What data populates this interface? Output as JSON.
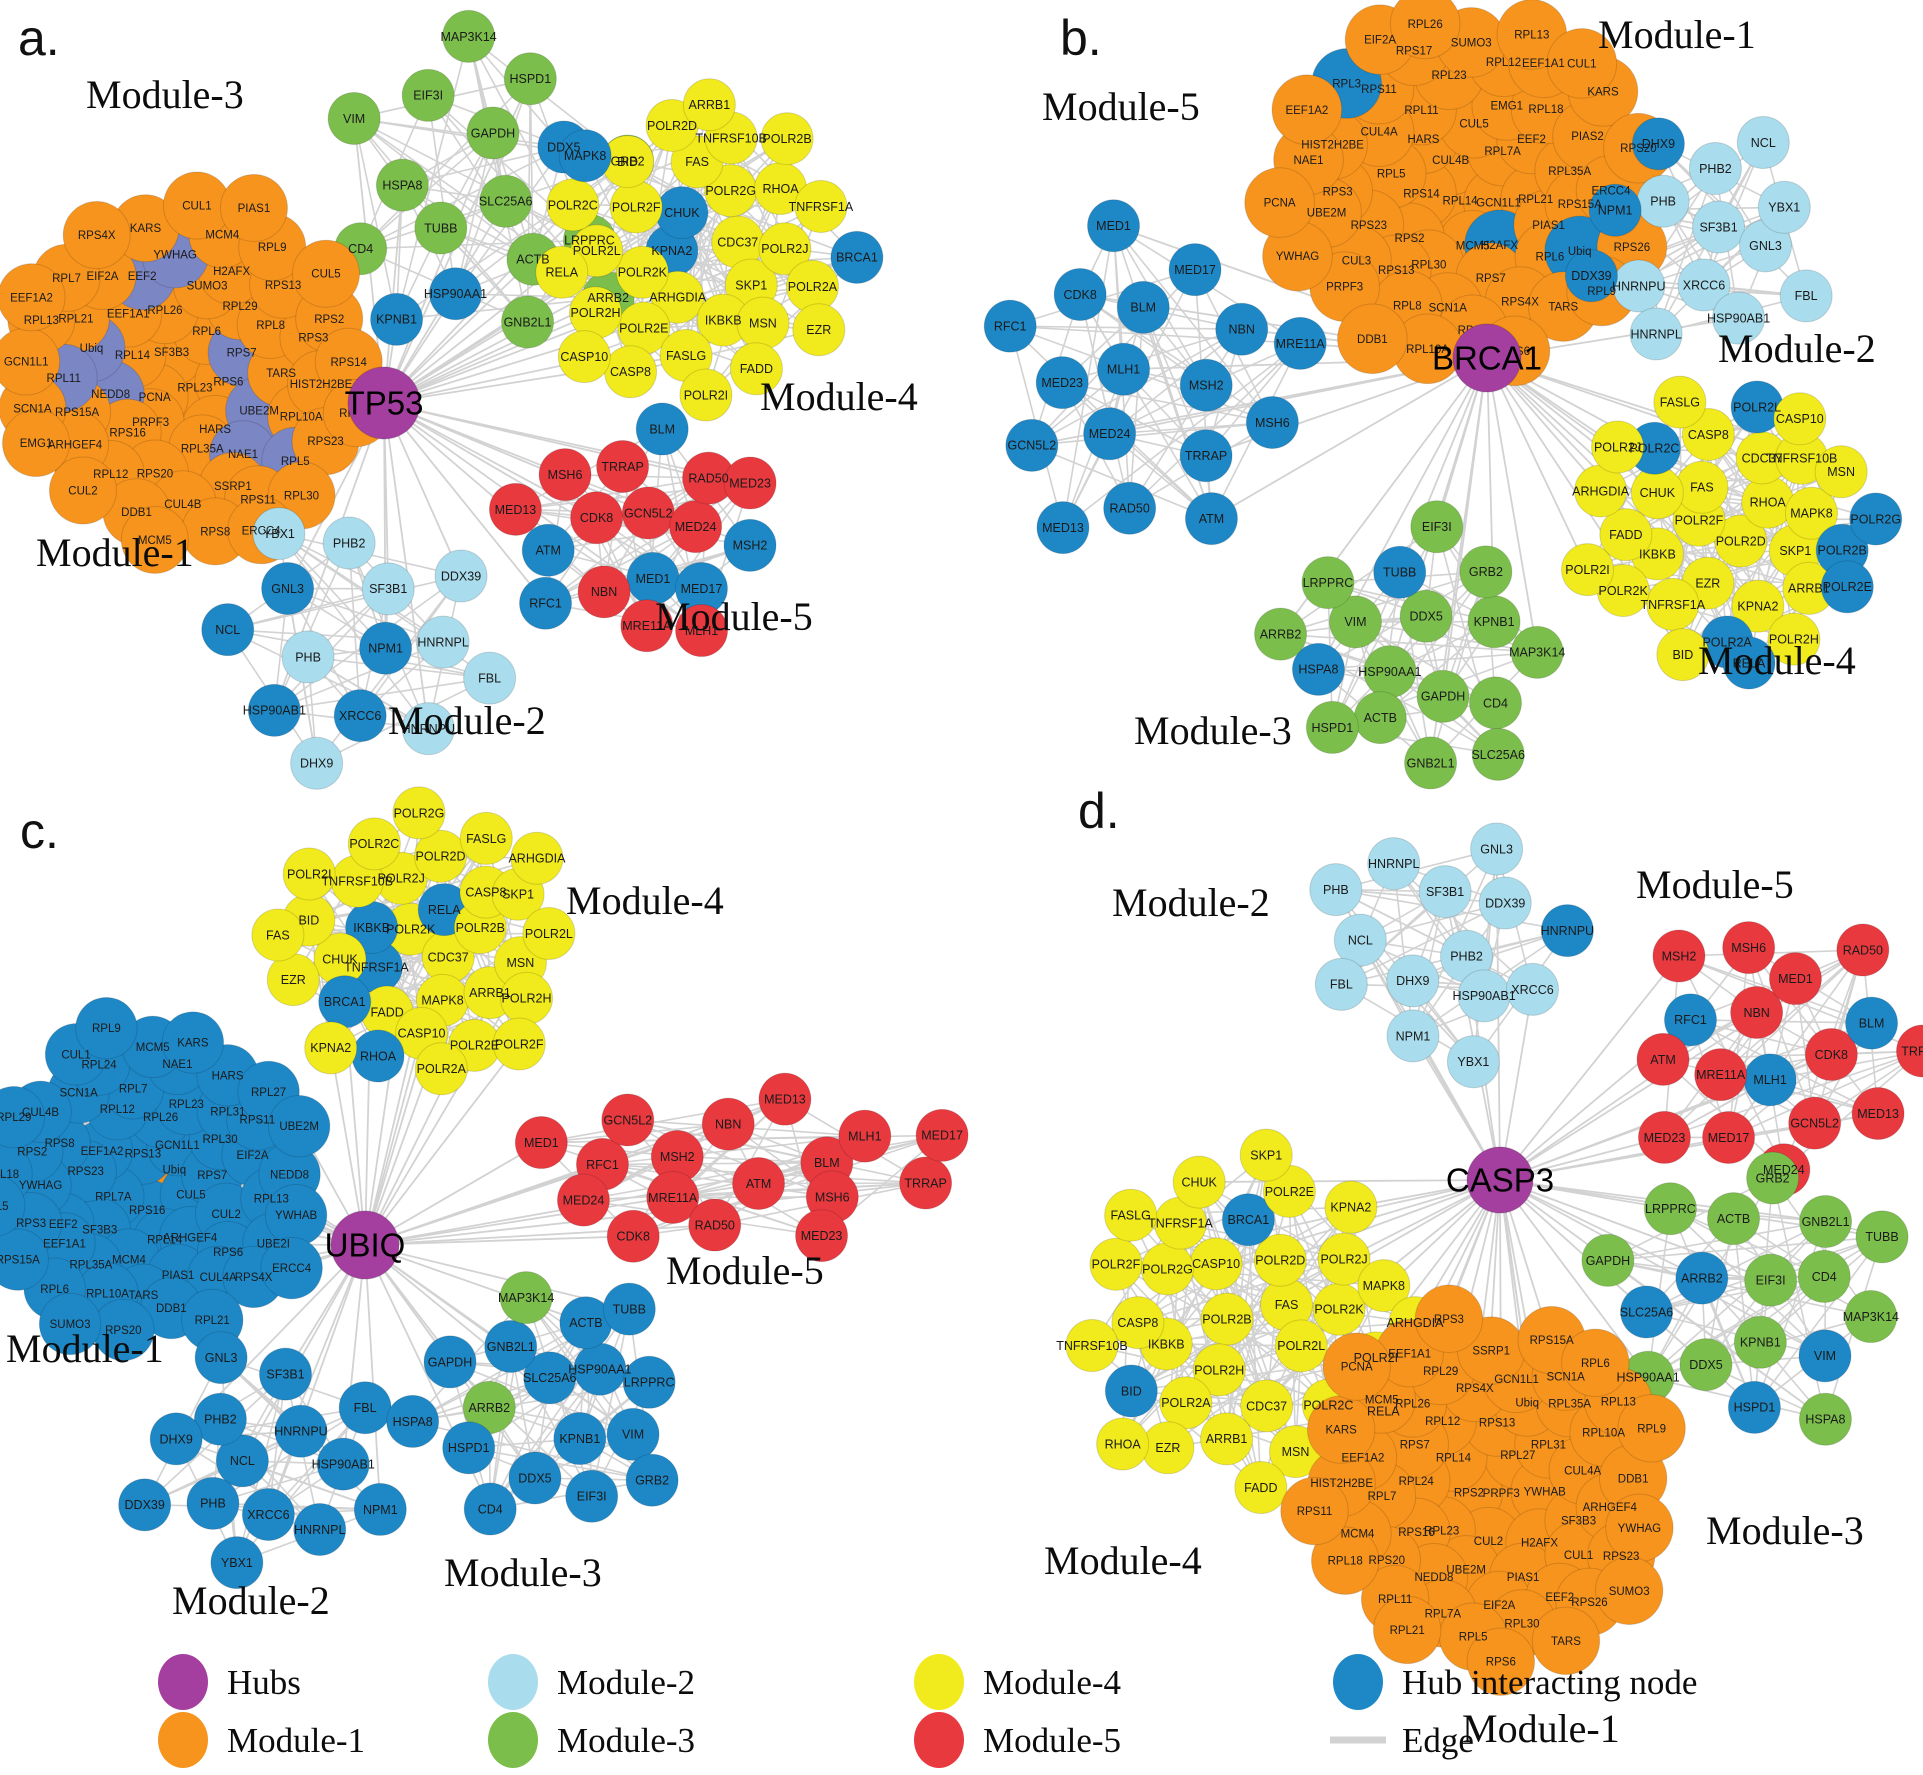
{
  "colors": {
    "hub": "#A43F9F",
    "module1": "#F7941E",
    "module2": "#A9DCEC",
    "module3": "#7CBE4B",
    "module4": "#F1EA1C",
    "module5": "#E8393F",
    "hub_node": "#1E88C7",
    "overlay": "#7B86C4",
    "edge": "#D2D2D2",
    "packed_underlay": "#D8D8D8"
  },
  "legend": {
    "items": [
      {
        "label": "Hubs",
        "role": "hub"
      },
      {
        "label": "Module-1",
        "role": "module1"
      },
      {
        "label": "Module-2",
        "role": "module2"
      },
      {
        "label": "Module-3",
        "role": "module3"
      },
      {
        "label": "Module-4",
        "role": "module4"
      },
      {
        "label": "Module-5",
        "role": "module5"
      },
      {
        "label": "Hub interacting node",
        "role": "hub_node"
      },
      {
        "label": "Edge",
        "role": "edge"
      }
    ]
  },
  "panels": [
    {
      "id": "a",
      "letter": "a.",
      "hub": {
        "label": "TP53"
      },
      "modules": [
        {
          "key": "m3",
          "label": "Module-3",
          "role": "module3",
          "packed": false,
          "nodes": [
            "SLC25A6",
            "TUBB",
            "GAPDH",
            "ACTB",
            "HSPA8",
            "DDX5|h",
            "HSP90AA1|h",
            "EIF3I",
            "LRPPRC",
            "CD4",
            "HSPD1",
            "GNB2L1",
            "VIM",
            "GRB2",
            "KPNB1|h",
            "MAP3K14",
            "ARRB2"
          ]
        },
        {
          "key": "m1",
          "label": "Module-1",
          "role": "module1",
          "packed": true,
          "nodes": [
            "RPL23",
            "SF3B3",
            "RPS6",
            "PCNA",
            "RPL6",
            "HARS",
            "RPL14",
            "RPS7|s",
            "PRPF3",
            "RPL26",
            "UBE2M|s",
            "NEDD8|s",
            "RPL29",
            "RPL35A",
            "EEF1A1",
            "TARS",
            "RPS16",
            "SUMO3",
            "NAE1|s",
            "Ubiq|s",
            "RPL8",
            "RPS20",
            "EEF2|s",
            "RPL10A",
            "RPS15A",
            "H2AFX",
            "SSRP1",
            "RPL21",
            "RPS3",
            "RPL12",
            "YWHAG|s",
            "RPL5|s",
            "RPL11|s",
            "RPS13",
            "CUL4B",
            "EIF2A",
            "HIST2H2BE",
            "ARHGEF4",
            "MCM4",
            "RPS11",
            "RPL13",
            "RPS2",
            "DDB1",
            "KARS",
            "RPS23",
            "SCN1A",
            "RPL9",
            "RPS8",
            "RPL7",
            "RPS14",
            "CUL2",
            "CUL1",
            "RPL30",
            "GCN1L1",
            "CUL5",
            "MCM5",
            "RPS4X",
            "RPL27",
            "EMG1",
            "PIAS1",
            "ERCC4",
            "EEF1A2"
          ]
        },
        {
          "key": "m4",
          "label": "Module-4",
          "role": "module4",
          "packed": false,
          "nodes": [
            "KPNA2|h",
            "CDC37",
            "ARHGDIA",
            "CHUK|h",
            "SKP1",
            "POLR2K",
            "POLR2G",
            "IKBKB",
            "POLR2F",
            "POLR2J",
            "POLR2E",
            "FAS",
            "MSN",
            "POLR2L",
            "RHOA",
            "FASLG",
            "BID",
            "POLR2A",
            "POLR2H",
            "TNFRSF10B",
            "FADD",
            "POLR2C",
            "TNFRSF1A",
            "CASP8",
            "POLR2D",
            "EZR",
            "RELA",
            "POLR2B",
            "POLR2I",
            "MAPK8|h",
            "BRCA1|h",
            "CASP10",
            "ARRB1"
          ]
        },
        {
          "key": "m5",
          "label": "Module-5",
          "role": "module5",
          "packed": false,
          "nodes": [
            "GCN5L2",
            "MED1|h",
            "CDK8",
            "MED24",
            "NBN",
            "TRRAP",
            "MED17|h",
            "ATM|h",
            "RAD50",
            "MRE11A",
            "MSH6",
            "MSH2|h",
            "RFC1|h",
            "BLM|h",
            "MLH1",
            "MED13",
            "MED23"
          ]
        },
        {
          "key": "m2",
          "label": "Module-2",
          "role": "module2",
          "packed": false,
          "nodes": [
            "NPM1|h",
            "PHB",
            "SF3B1",
            "XRCC6|h",
            "GNL3|h",
            "HNRNPL",
            "HSP90AB1|h",
            "PHB2",
            "HNRNPU",
            "NCL|h",
            "DDX39",
            "DHX9",
            "YBX1",
            "FBL"
          ]
        }
      ]
    },
    {
      "id": "b",
      "letter": "b.",
      "hub": {
        "label": "BRCA1"
      },
      "modules": [
        {
          "key": "m1",
          "label": "Module-1",
          "role": "module1",
          "packed": true,
          "nodes": [
            "RPL14",
            "CUL4B",
            "GCN1L1",
            "RPS14",
            "RPL7A",
            "MCM5",
            "HARS",
            "RPL21",
            "RPS2",
            "CUL5",
            "H2AFX|h",
            "RPL5",
            "EEF2",
            "RPL30",
            "RPL11",
            "PIAS1",
            "RPS23",
            "EMG1",
            "RPS7",
            "CUL4A",
            "RPL35A",
            "RPS13",
            "RPL23",
            "RPL6",
            "RPS3",
            "RPL18",
            "SCN1A",
            "RPS11",
            "RPS15A",
            "CUL3",
            "RPL12",
            "RPS4X",
            "HIST2H2BE",
            "PIAS2",
            "RPL8",
            "RPS17",
            "Ubiq|h",
            "UBE2M",
            "EEF1A1",
            "RPS8",
            "RPL3|h",
            "ERCC4",
            "PRPF3",
            "SUMO3",
            "TARS",
            "NAE1",
            "KARS",
            "RPL10A",
            "EIF2A",
            "RPS26",
            "YWHAG",
            "RPL13",
            "RPS6",
            "EEF1A2",
            "RPS20",
            "DDB1",
            "RPL26",
            "RPL9",
            "PCNA",
            "CUL1"
          ]
        },
        {
          "key": "m5",
          "label": "Module-5",
          "role": "module5",
          "packed": false,
          "nodes": [
            "MLH1|h",
            "MSH2|h",
            "MED24|h",
            "BLM|h",
            "TRRAP|h",
            "MED23|h",
            "NBN|h",
            "RAD50|h",
            "CDK8|h",
            "MSH6|h",
            "GCN5L2|h",
            "MED17|h",
            "ATM|h",
            "RFC1|h",
            "MRE11A|h",
            "MED13|h",
            "MED1|h"
          ]
        },
        {
          "key": "m2",
          "label": "Module-2",
          "role": "module2",
          "packed": false,
          "nodes": [
            "SF3B1",
            "XRCC6",
            "PHB",
            "GNL3",
            "HNRNPU",
            "PHB2",
            "HSP90AB1",
            "NPM1|h",
            "YBX1",
            "HNRNPL",
            "DHX9|h",
            "FBL",
            "DDX39|h",
            "NCL"
          ]
        },
        {
          "key": "m4",
          "label": "Module-4",
          "role": "module4",
          "packed": false,
          "nodes": [
            "POLR2D",
            "POLR2F",
            "RHOA",
            "EZR",
            "FAS",
            "SKP1",
            "IKBKB",
            "CDC37",
            "KPNA2",
            "CHUK",
            "MAPK8",
            "TNFRSF1A",
            "CASP8",
            "ARRB1",
            "FADD",
            "TNFRSF10B",
            "POLR2A|h",
            "POLR2C|h",
            "POLR2B|h",
            "POLR2K",
            "POLR2L|h",
            "POLR2H",
            "ARHGDIA",
            "MSN",
            "BID",
            "FASLG",
            "POLR2E|h",
            "POLR2I",
            "CASP10",
            "RELA|h",
            "POLR2J",
            "POLR2G|h"
          ]
        },
        {
          "key": "m3",
          "label": "Module-3",
          "role": "module3",
          "packed": false,
          "nodes": [
            "HSP90AA1",
            "DDX5",
            "GAPDH",
            "VIM",
            "KPNB1",
            "ACTB",
            "TUBB|h",
            "CD4",
            "HSPA8|h",
            "GRB2",
            "GNB2L1",
            "LRPPRC",
            "MAP3K14",
            "HSPD1",
            "EIF3I",
            "SLC25A6",
            "ARRB2"
          ]
        }
      ]
    },
    {
      "id": "c",
      "letter": "c.",
      "hub": {
        "label": "UBIQ"
      },
      "modules": [
        {
          "key": "m4",
          "label": "Module-4",
          "role": "module4",
          "packed": false,
          "nodes": [
            "POLR2K",
            "CDC37",
            "TNFRSF1A|h",
            "RELA|h",
            "MAPK8",
            "IKBKB|h",
            "POLR2B",
            "FADD",
            "POLR2J",
            "ARRB1",
            "CHUK",
            "CASP8",
            "CASP10",
            "TNFRSF10B",
            "MSN",
            "BRCA1|h",
            "POLR2D",
            "POLR2E",
            "BID",
            "SKP1",
            "RHOA|h",
            "POLR2C",
            "POLR2H",
            "EZR",
            "FASLG",
            "POLR2A",
            "POLR2I",
            "POLR2L",
            "KPNA2",
            "POLR2G",
            "POLR2F",
            "FAS",
            "ARHGDIA"
          ]
        },
        {
          "key": "m1",
          "label": "Module-1",
          "role": "hub_node",
          "packed": true,
          "nodes": [
            "Ubiq|o",
            "RPS16",
            "RPS13",
            "CUL5",
            "RPL7A",
            "GCN1L1",
            "RPL14",
            "EEF1A2",
            "RPS7",
            "SF3B3",
            "RPL26",
            "ARHGEF4",
            "RPS23",
            "RPL30",
            "MCM4",
            "RPL12",
            "CUL2",
            "EEF2",
            "RPL23",
            "PIAS1",
            "RPS8",
            "EIF2A",
            "RPL35A",
            "RPL7",
            "RPS6",
            "YWHAG",
            "RPL31",
            "TARS",
            "SCN1A",
            "RPL13",
            "EEF1A1",
            "NAE1",
            "CUL4A",
            "RPS2",
            "RPS11",
            "RPL10A",
            "RPL24",
            "UBE2I",
            "RPS3",
            "HARS",
            "DDB1",
            "CUL4B",
            "NEDD8",
            "RPL6",
            "MCM5",
            "RPS4X",
            "RPL18",
            "RPL27",
            "RPS20",
            "CUL1",
            "YWHAB",
            "RPS15A",
            "KARS",
            "RPL21",
            "RPL29",
            "UBE2M",
            "SUMO3",
            "RPL9",
            "ERCC4",
            "RPL5"
          ]
        },
        {
          "key": "m5",
          "label": "Module-5",
          "role": "module5",
          "packed": false,
          "nodes": [
            "ATM",
            "MSH2",
            "BLM",
            "MRE11A",
            "NBN",
            "MSH6",
            "RFC1",
            "MLH1",
            "RAD50",
            "GCN5L2",
            "TRRAP",
            "MED24",
            "MED13",
            "MED23",
            "MED1",
            "MED17",
            "CDK8"
          ]
        },
        {
          "key": "m2",
          "label": "Module-2",
          "role": "hub_node",
          "packed": false,
          "nodes": [
            "NCL",
            "HNRNPU",
            "XRCC6",
            "PHB2",
            "HSP90AB1",
            "PHB",
            "SF3B1",
            "HNRNPL",
            "DHX9",
            "FBL",
            "YBX1",
            "GNL3",
            "NPM1",
            "DDX39"
          ]
        },
        {
          "key": "m3",
          "label": "Module-3",
          "role": "hub_node",
          "packed": false,
          "nodes": [
            "SLC25A6",
            "KPNB1",
            "ARRB2|g",
            "HSP90AA1",
            "DDX5",
            "GNB2L1",
            "VIM",
            "HSPD1",
            "ACTB",
            "EIF3I",
            "GAPDH",
            "LRPPRC",
            "CD4",
            "MAP3K14|g",
            "GRB2",
            "HSPA8",
            "TUBB"
          ]
        }
      ]
    },
    {
      "id": "d",
      "letter": "d.",
      "hub": {
        "label": "CASP3"
      },
      "modules": [
        {
          "key": "m2",
          "label": "Module-2",
          "role": "module2",
          "packed": false,
          "nodes": [
            "PHB2",
            "DHX9",
            "SF3B1",
            "HSP90AB1",
            "NCL",
            "DDX39",
            "NPM1",
            "HNRNPL",
            "XRCC6",
            "FBL",
            "GNL3",
            "YBX1",
            "PHB",
            "HNRNPU|h"
          ]
        },
        {
          "key": "m5",
          "label": "Module-5",
          "role": "module5",
          "packed": false,
          "nodes": [
            "MLH1|h",
            "NBN",
            "CDK8",
            "MRE11A",
            "MED1",
            "GCN5L2",
            "RFC1|h",
            "BLM|h",
            "MED17",
            "MSH6",
            "MED13",
            "ATM",
            "RAD50",
            "MED24",
            "MSH2",
            "TRRAP",
            "MED23"
          ]
        },
        {
          "key": "m4",
          "label": "Module-4",
          "role": "module4",
          "packed": false,
          "nodes": [
            "POLR2B",
            "FAS",
            "POLR2H",
            "CASP10",
            "POLR2L",
            "IKBKB",
            "POLR2D",
            "CDC37",
            "POLR2G",
            "POLR2K",
            "POLR2A",
            "BRCA1|h",
            "POLR2C",
            "CASP8",
            "POLR2J",
            "ARRB1",
            "TNFRSF1A",
            "POLR2I",
            "BID|h",
            "POLR2E",
            "MSN",
            "POLR2F",
            "MAPK8",
            "EZR",
            "CHUK",
            "RELA",
            "TNFRSF10B",
            "KPNA2",
            "FADD",
            "FASLG",
            "ARHGDIA",
            "RHOA",
            "SKP1"
          ]
        },
        {
          "key": "m3",
          "label": "Module-3",
          "role": "module3",
          "packed": false,
          "nodes": [
            "EIF3I",
            "KPNB1",
            "ARRB2|h",
            "CD4",
            "DDX5",
            "ACTB",
            "VIM|h",
            "SLC25A6|h",
            "GNB2L1",
            "HSPD1|h",
            "LRPPRC",
            "MAP3K14",
            "HSP90AA1",
            "GRB2",
            "HSPA8",
            "GAPDH",
            "TUBB"
          ]
        },
        {
          "key": "m1",
          "label": "Module-1",
          "role": "module1",
          "packed": true,
          "nodes": [
            "PRPF3",
            "RPS2",
            "RPL27",
            "CUL2",
            "RPL14",
            "YWHAB",
            "RPL23",
            "RPS13",
            "H2AFX",
            "RPL24",
            "RPL31",
            "UBE2M",
            "RPL12",
            "SF3B3",
            "RPS16",
            "Ubiq",
            "PIAS1",
            "RPS7",
            "CUL4A",
            "NEDD8",
            "RPS4X",
            "CUL1",
            "RPL7",
            "RPL35A",
            "EIF2A",
            "RPL26",
            "ARHGEF4",
            "RPS20",
            "GCN1L1",
            "EEF2",
            "EEF1A2",
            "RPL10A",
            "RPL7A",
            "RPL29",
            "RPS23",
            "MCM4",
            "SCN1A",
            "RPL30",
            "MCM5",
            "DDB1",
            "RPL11",
            "SSRP1",
            "RPS26",
            "HIST2H2BE",
            "RPL13",
            "RPL5",
            "EEF1A1",
            "YWHAG",
            "RPL18",
            "RPS15A",
            "TARS",
            "KARS",
            "RPL9",
            "RPL21",
            "RPS3",
            "SUMO3",
            "RPS11",
            "RPL6",
            "RPS6",
            "PCNA"
          ]
        }
      ]
    }
  ]
}
